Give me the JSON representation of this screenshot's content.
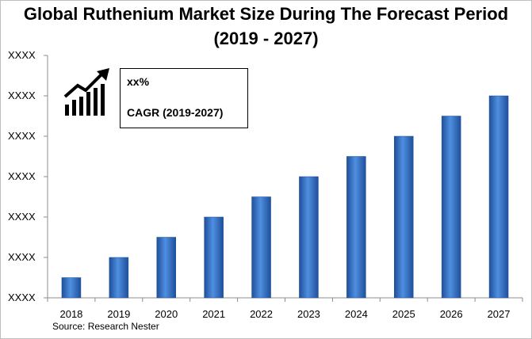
{
  "chart_data": {
    "type": "bar",
    "title": "Global Ruthenium Market Size During The Forecast Period",
    "subtitle": "(2019 - 2027)",
    "categories": [
      "2018",
      "2019",
      "2020",
      "2021",
      "2022",
      "2023",
      "2024",
      "2025",
      "2026",
      "2027"
    ],
    "values": [
      0.5,
      1.0,
      1.5,
      2.0,
      2.5,
      3.0,
      3.5,
      4.0,
      4.5,
      5.0
    ],
    "y_tick_labels": [
      "XXXX",
      "XXXX",
      "XXXX",
      "XXXX",
      "XXXX",
      "XXXX",
      "XXXX"
    ],
    "ylim": [
      0,
      6
    ],
    "xlabel": "",
    "ylabel": "",
    "grid": false,
    "legend": "none",
    "bar_color": "#3f7fd0",
    "bar_color_dark": "#1f4f9a"
  },
  "callout": {
    "value": "xx%",
    "label": "CAGR (2019-2027)",
    "icon": "growth-chart-icon"
  },
  "source": "Source: Research Nester"
}
